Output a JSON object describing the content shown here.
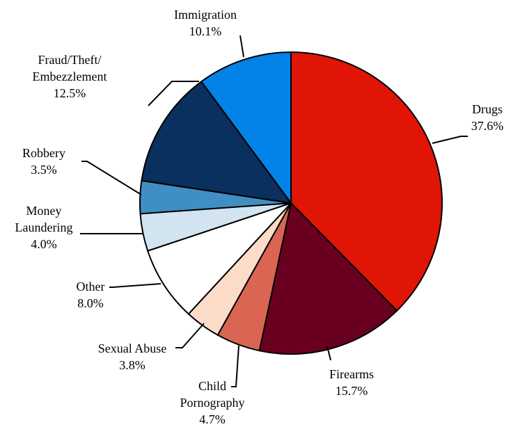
{
  "chart_data": {
    "type": "pie",
    "title": "",
    "start_angle_deg": 0,
    "direction": "clockwise",
    "slices": [
      {
        "label": [
          "Drugs"
        ],
        "value": 37.6,
        "display": "37.6%",
        "color": "#e01506"
      },
      {
        "label": [
          "Firearms"
        ],
        "value": 15.7,
        "display": "15.7%",
        "color": "#6a0020"
      },
      {
        "label": [
          "Child",
          "Pornography"
        ],
        "value": 4.7,
        "display": "4.7%",
        "color": "#d96552"
      },
      {
        "label": [
          "Sexual Abuse"
        ],
        "value": 3.8,
        "display": "3.8%",
        "color": "#fcdcc9"
      },
      {
        "label": [
          "Other"
        ],
        "value": 8.0,
        "display": "8.0%",
        "color": "#ffffff"
      },
      {
        "label": [
          "Money",
          "Laundering"
        ],
        "value": 4.0,
        "display": "4.0%",
        "color": "#d1e4f0"
      },
      {
        "label": [
          "Robbery"
        ],
        "value": 3.5,
        "display": "3.5%",
        "color": "#3f8fc4"
      },
      {
        "label": [
          "Fraud/Theft/",
          "Embezzlement"
        ],
        "value": 12.5,
        "display": "12.5%",
        "color": "#09305e"
      },
      {
        "label": [
          "Immigration"
        ],
        "value": 10.1,
        "display": "10.1%",
        "color": "#0382e8"
      }
    ]
  }
}
